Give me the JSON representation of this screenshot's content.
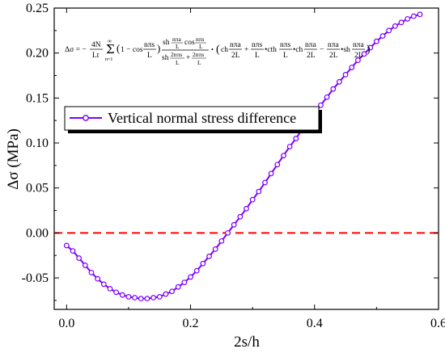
{
  "chart_data": {
    "type": "line",
    "title": "",
    "xlabel": "2s/h",
    "ylabel": "Δσ (MPa)",
    "xlim": [
      -0.02,
      0.6
    ],
    "ylim": [
      -0.085,
      0.25
    ],
    "xticks": [
      "0.0",
      "0.2",
      "0.4",
      "0.6"
    ],
    "yticks": [
      "-0.05",
      "0.00",
      "0.05",
      "0.10",
      "0.15",
      "0.20",
      "0.25"
    ],
    "xtick_values": [
      0.0,
      0.2,
      0.4,
      0.6
    ],
    "ytick_values": [
      -0.05,
      0.0,
      0.05,
      0.1,
      0.15,
      0.2,
      0.25
    ],
    "grid": false,
    "legend_position": "upper-left",
    "reference_line": {
      "y": 0.0,
      "color": "#ff0000",
      "style": "dashed"
    },
    "formula": {
      "prefix": "Δσ = −",
      "coefficient_num": "4N",
      "coefficient_den": "Lt",
      "sum_top": "∞",
      "sum_bottom": "n=1",
      "factor1": "1 − cos",
      "arg1_num": "nπs",
      "arg1_den": "L",
      "frac_num": "sh",
      "frac_num_arg_num": "nπa",
      "frac_num_arg_den": "L",
      "frac_num_cos": "cos",
      "frac_num_cos_arg_num": "nπs",
      "frac_num_cos_arg_den": "L",
      "frac_den_sh": "sh",
      "frac_den_arg1_num": "2nπs",
      "frac_den_arg1_den": "L",
      "frac_den_plus": "+",
      "frac_den_arg2_num": "2nπs",
      "frac_den_arg2_den": "L",
      "bracket_ch": "ch",
      "b_arg1_num": "nπa",
      "b_arg1_den": "2L",
      "b_plus": "+",
      "b_arg2_num": "nπs",
      "b_arg2_den": "L",
      "b_cth": "•cth",
      "b_arg3_num": "nπs",
      "b_arg3_den": "L",
      "b_ch": "•ch",
      "b_arg4_num": "nπa",
      "b_arg4_den": "2L",
      "b_minus": "−",
      "b_arg5_num": "nπa",
      "b_arg5_den": "2L",
      "b_sh": "•sh",
      "b_arg6_num": "nπa",
      "b_arg6_den": "2L"
    },
    "series": [
      {
        "name": "Vertical normal stress difference",
        "color": "#7b00ff",
        "marker": "open-circle",
        "x": [
          0.0,
          0.01,
          0.02,
          0.03,
          0.04,
          0.05,
          0.06,
          0.07,
          0.08,
          0.09,
          0.1,
          0.11,
          0.12,
          0.13,
          0.14,
          0.15,
          0.16,
          0.17,
          0.18,
          0.19,
          0.2,
          0.21,
          0.22,
          0.23,
          0.24,
          0.25,
          0.26,
          0.27,
          0.28,
          0.29,
          0.3,
          0.31,
          0.32,
          0.33,
          0.34,
          0.35,
          0.36,
          0.37,
          0.38,
          0.39,
          0.4,
          0.41,
          0.42,
          0.43,
          0.44,
          0.45,
          0.46,
          0.47,
          0.48,
          0.49,
          0.5,
          0.51,
          0.52,
          0.53,
          0.54,
          0.55,
          0.56,
          0.57
        ],
        "y": [
          -0.014,
          -0.02,
          -0.028,
          -0.036,
          -0.044,
          -0.051,
          -0.057,
          -0.062,
          -0.066,
          -0.069,
          -0.071,
          -0.072,
          -0.073,
          -0.073,
          -0.072,
          -0.071,
          -0.068,
          -0.065,
          -0.06,
          -0.055,
          -0.049,
          -0.042,
          -0.034,
          -0.026,
          -0.018,
          -0.009,
          0.0,
          0.009,
          0.018,
          0.027,
          0.037,
          0.046,
          0.056,
          0.066,
          0.076,
          0.086,
          0.096,
          0.105,
          0.115,
          0.124,
          0.133,
          0.142,
          0.151,
          0.16,
          0.168,
          0.176,
          0.184,
          0.192,
          0.199,
          0.206,
          0.213,
          0.219,
          0.225,
          0.23,
          0.234,
          0.238,
          0.241,
          0.243
        ]
      }
    ]
  }
}
